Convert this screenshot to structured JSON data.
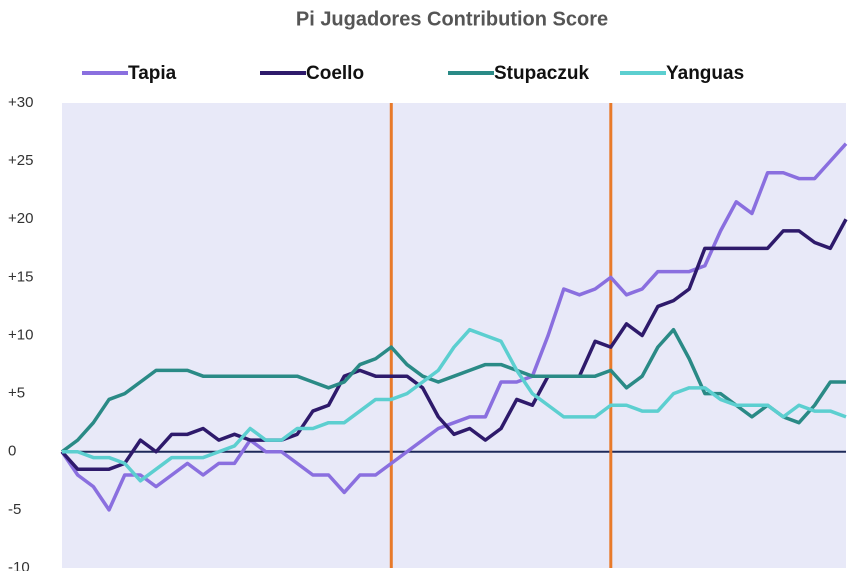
{
  "chart_data": {
    "type": "line",
    "title": "Pi Jugadores Contribution Score",
    "ylim": [
      -10,
      30
    ],
    "yticks": [
      {
        "value": 30,
        "label": "+30"
      },
      {
        "value": 25,
        "label": "+25"
      },
      {
        "value": 20,
        "label": "+20"
      },
      {
        "value": 15,
        "label": "+15"
      },
      {
        "value": 10,
        "label": "+10"
      },
      {
        "value": 5,
        "label": "+5"
      },
      0,
      -5,
      -10
    ],
    "grid": false,
    "background": "#e8e9f8",
    "vlines": [
      21,
      35
    ],
    "vline_color": "#e87a2a",
    "series": [
      {
        "name": "Tapia",
        "color": "#8a6fdf",
        "values": [
          0,
          -2,
          -3,
          -5,
          -2,
          -2,
          -3,
          -2,
          -1,
          -2,
          -1,
          -1,
          1,
          0,
          0,
          -1,
          -2,
          -2,
          -3.5,
          -2,
          -2,
          -1,
          0,
          1,
          2,
          2.5,
          3,
          3,
          6,
          6,
          6.5,
          10,
          14,
          13.5,
          14,
          15,
          13.5,
          14,
          15.5,
          15.5,
          15.5,
          16,
          19,
          21.5,
          20.5,
          24,
          24,
          23.5,
          23.5,
          25,
          26.5
        ]
      },
      {
        "name": "Coello",
        "color": "#2e1a6b",
        "values": [
          0,
          -1.5,
          -1.5,
          -1.5,
          -1,
          1,
          0,
          1.5,
          1.5,
          2,
          1,
          1.5,
          1,
          1,
          1,
          1.5,
          3.5,
          4,
          6.5,
          7,
          6.5,
          6.5,
          6.5,
          5.5,
          3,
          1.5,
          2,
          1,
          2,
          4.5,
          4,
          6.5,
          6.5,
          6.5,
          9.5,
          9,
          11,
          10,
          12.5,
          13,
          14,
          17.5,
          17.5,
          17.5,
          17.5,
          17.5,
          19,
          19,
          18,
          17.5,
          20
        ]
      },
      {
        "name": "Stupaczuk",
        "color": "#2a8a86",
        "values": [
          0,
          1,
          2.5,
          4.5,
          5,
          6,
          7,
          7,
          7,
          6.5,
          6.5,
          6.5,
          6.5,
          6.5,
          6.5,
          6.5,
          6,
          5.5,
          6,
          7.5,
          8,
          9,
          7.5,
          6.5,
          6,
          6.5,
          7,
          7.5,
          7.5,
          7,
          6.5,
          6.5,
          6.5,
          6.5,
          6.5,
          7,
          5.5,
          6.5,
          9,
          10.5,
          8,
          5,
          5,
          4,
          3,
          4,
          3,
          2.5,
          4,
          6,
          6
        ]
      },
      {
        "name": "Yanguas",
        "color": "#5ccfd0",
        "values": [
          0,
          0,
          -0.5,
          -0.5,
          -1,
          -2.5,
          -1.5,
          -0.5,
          -0.5,
          -0.5,
          0,
          0.5,
          2,
          1,
          1,
          2,
          2,
          2.5,
          2.5,
          3.5,
          4.5,
          4.5,
          5,
          6,
          7,
          9,
          10.5,
          10,
          9.5,
          7,
          5,
          4,
          3,
          3,
          3,
          4,
          4,
          3.5,
          3.5,
          5,
          5.5,
          5.5,
          4.5,
          4,
          4,
          4,
          3,
          4,
          3.5,
          3.5,
          3
        ]
      }
    ]
  }
}
